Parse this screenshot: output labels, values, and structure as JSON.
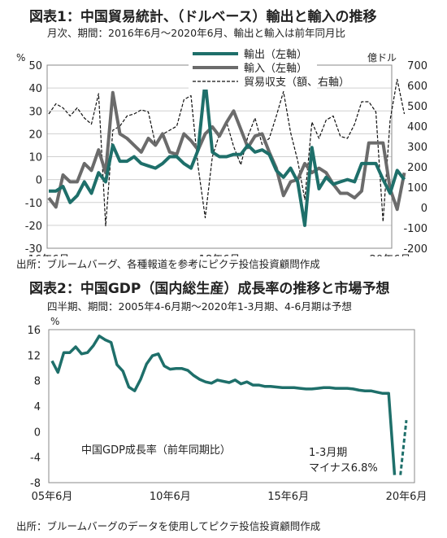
{
  "figure1": {
    "title": "図表1：中国貿易統計、（ドルベース）輸出と輸入の推移",
    "subtitle": "月次、期間：2016年6月〜2020年6月、輸出と輸入は前年同月比",
    "source": "出所：ブルームバーグ、各種報道を参考にピクテ投信投資顧問作成",
    "left_unit": "%",
    "right_unit": "億ドル",
    "chart_data": {
      "type": "line",
      "x_tick_labels": [
        "16年6月",
        "18年6月",
        "20年6月"
      ],
      "x_tick_months": [
        0,
        24,
        48
      ],
      "y_left": {
        "label": "%",
        "range": [
          -30,
          50
        ],
        "ticks": [
          -30,
          -20,
          -10,
          0,
          10,
          20,
          30,
          40,
          50
        ]
      },
      "y_right": {
        "label": "億ドル",
        "range": [
          -200,
          700
        ],
        "ticks": [
          -200,
          -100,
          0,
          100,
          200,
          300,
          400,
          500,
          600,
          700
        ]
      },
      "legend_position": "top-right",
      "series": [
        {
          "name": "輸出（左軸）",
          "axis": "left",
          "color": "#1e6f6a",
          "style": "solid-thick",
          "values": [
            -5,
            -5,
            -3,
            -10,
            -7,
            -1,
            -6,
            3,
            -1,
            15,
            8,
            8,
            10,
            7,
            6,
            5,
            7,
            10,
            10,
            7,
            5,
            13,
            43,
            12,
            10,
            10,
            11,
            11,
            15,
            12,
            13,
            11,
            4,
            1,
            5,
            -1,
            -20,
            14,
            -4,
            1,
            -2,
            -1,
            0,
            -1,
            7,
            7,
            7,
            0,
            -6,
            4,
            0
          ]
        },
        {
          "name": "輸入（左軸）",
          "axis": "left",
          "color": "#6b6b6b",
          "style": "solid-thick",
          "values": [
            -8,
            -12,
            2,
            -1,
            -1,
            7,
            4,
            13,
            3,
            38,
            20,
            18,
            15,
            12,
            18,
            15,
            20,
            12,
            11,
            20,
            17,
            13,
            20,
            23,
            19,
            25,
            30,
            22,
            14,
            19,
            20,
            12,
            5,
            -7,
            -1,
            0,
            7,
            3,
            5,
            3,
            -2,
            -6,
            -6,
            -8,
            -5,
            16,
            16,
            16,
            -4,
            -13,
            3
          ]
        },
        {
          "name": "貿易収支（額、右軸）",
          "axis": "right",
          "color": "#111111",
          "style": "dashed",
          "values": [
            460,
            510,
            490,
            450,
            490,
            440,
            410,
            560,
            -90,
            380,
            400,
            450,
            460,
            480,
            470,
            310,
            360,
            380,
            400,
            530,
            550,
            200,
            -50,
            250,
            360,
            420,
            300,
            210,
            350,
            440,
            310,
            340,
            450,
            570,
            370,
            230,
            40,
            420,
            340,
            430,
            450,
            350,
            340,
            410,
            520,
            520,
            470,
            -70,
            430,
            630,
            460
          ]
        }
      ]
    }
  },
  "figure2": {
    "title": "図表2：中国GDP（国内総生産）成長率の推移と市場予想",
    "subtitle": "四半期、期間：2005年4-6月期〜2020年1-3月期、4-6月期は予想",
    "source": "出所：ブルームバーグのデータを使用してピクテ投信投資顧問作成",
    "unit": "%",
    "series_label": "中国GDP成長率（前年同期比）",
    "annotation_line1": "1-3月期",
    "annotation_line2": "マイナス6.8%",
    "chart_data": {
      "type": "line",
      "x_tick_labels": [
        "05年6月",
        "10年6月",
        "15年6月",
        "20年6月"
      ],
      "x_tick_quarters": [
        0,
        20,
        40,
        60
      ],
      "y": {
        "label": "%",
        "range": [
          -8,
          16
        ],
        "ticks": [
          -8,
          -4,
          0,
          4,
          8,
          12,
          16
        ]
      },
      "grid": false,
      "series": [
        {
          "name": "中国GDP成長率（前年同期比）",
          "color": "#1e6f6a",
          "style": "solid-thick",
          "values": [
            11.1,
            9.3,
            12.4,
            12.4,
            13.3,
            12.2,
            12.4,
            13.5,
            15.0,
            14.4,
            14.0,
            10.5,
            9.5,
            7.0,
            6.4,
            8.2,
            10.6,
            11.9,
            12.2,
            10.3,
            9.8,
            9.9,
            9.9,
            9.6,
            8.8,
            8.2,
            7.8,
            7.6,
            8.1,
            7.9,
            7.7,
            8.1,
            7.5,
            7.8,
            7.3,
            7.3,
            7.1,
            7.1,
            7.0,
            6.9,
            6.9,
            6.9,
            6.8,
            6.7,
            6.7,
            6.8,
            6.9,
            6.9,
            6.8,
            6.8,
            6.8,
            6.7,
            6.5,
            6.4,
            6.4,
            6.2,
            6.0,
            6.0,
            -6.8
          ]
        },
        {
          "name": "予想",
          "color": "#1e6f6a",
          "style": "dashed",
          "start_quarter": 59,
          "values": [
            -6.8,
            1.8
          ]
        }
      ]
    }
  }
}
